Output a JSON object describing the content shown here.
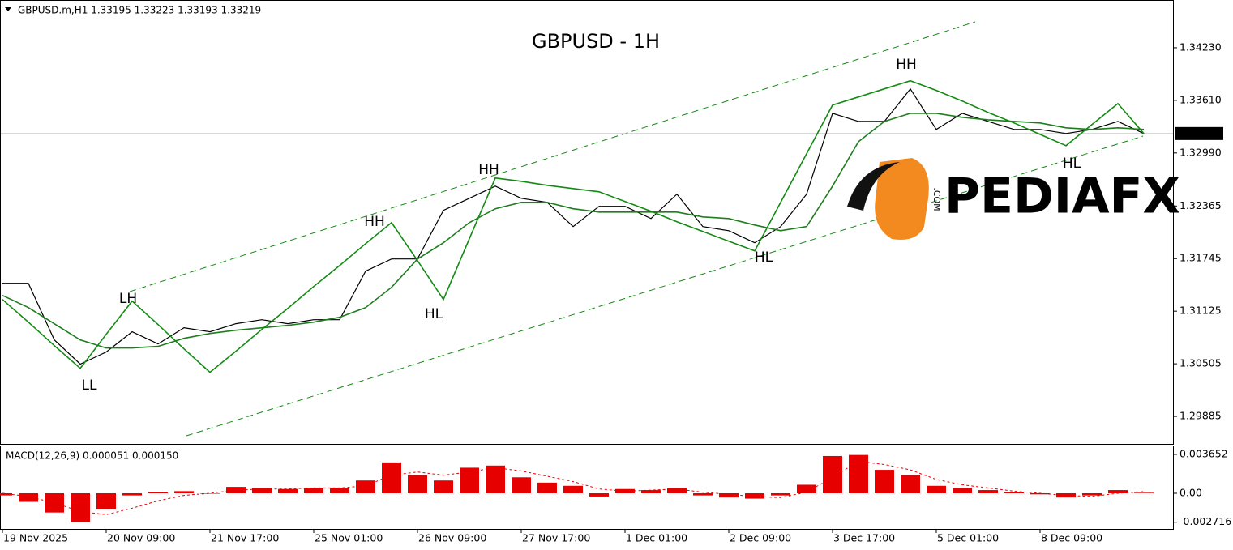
{
  "chart_data": [
    {
      "type": "line",
      "title": "GBPUSD - 1H",
      "header": "GBPUSD.m,H1  1.33195 1.33223 1.33193 1.33219",
      "watermark": "PEDIAFX",
      "watermark_sub": ".COM",
      "categories": [
        "19 Nov 2025",
        null,
        null,
        null,
        "20 Nov 09:00",
        null,
        null,
        null,
        "21 Nov 17:00",
        null,
        null,
        null,
        "25 Nov 01:00",
        null,
        null,
        null,
        "26 Nov 09:00",
        null,
        null,
        null,
        "27 Nov 17:00",
        null,
        null,
        null,
        "1 Dec 01:00",
        null,
        null,
        null,
        "2 Dec 09:00",
        null,
        null,
        null,
        "3 Dec 17:00",
        null,
        null,
        null,
        "5 Dec 01:00",
        null,
        null,
        null,
        "8 Dec 09:00",
        null,
        null,
        null,
        null
      ],
      "series": [
        {
          "color": "#000000",
          "values": [
            1.31454,
            1.31454,
            1.30787,
            1.30501,
            1.30644,
            1.30882,
            1.30739,
            1.3093,
            1.30882,
            1.30978,
            1.31025,
            1.30978,
            1.31025,
            1.31025,
            1.31597,
            1.31741,
            1.31741,
            1.32313,
            1.32456,
            1.32599,
            1.32456,
            1.32408,
            1.32122,
            1.32361,
            1.32361,
            1.32217,
            1.32504,
            1.32122,
            1.32074,
            1.31931,
            1.32122,
            1.32504,
            1.33457,
            1.33362,
            1.33362,
            1.33744,
            1.33267,
            1.33457,
            1.33362,
            1.33267,
            1.33267,
            1.33219,
            1.33267,
            1.33362,
            1.33219
          ]
        },
        {
          "color": "#1e7d1e",
          "values": [
            1.31311,
            1.31168,
            1.30977,
            1.30786,
            1.30691,
            1.30691,
            1.3071,
            1.30805,
            1.30862,
            1.309,
            1.30929,
            1.30958,
            1.30996,
            1.31053,
            1.31168,
            1.31406,
            1.3174,
            1.31931,
            1.32169,
            1.32332,
            1.32408,
            1.32408,
            1.32332,
            1.32293,
            1.32293,
            1.32293,
            1.32293,
            1.32236,
            1.32217,
            1.32141,
            1.32074,
            1.32122,
            1.32599,
            1.33123,
            1.33362,
            1.33457,
            1.33457,
            1.3341,
            1.33381,
            1.33362,
            1.33343,
            1.33286,
            1.33267,
            1.33286,
            1.33267
          ]
        },
        {
          "color": "#138a13",
          "values": [
            1.31263,
            1.30996,
            1.30719,
            1.30452,
            1.30853,
            1.31244,
            1.30967,
            1.30681,
            1.30405,
            1.30653,
            1.3091,
            1.31158,
            1.31416,
            1.31664,
            1.31921,
            1.32169,
            1.31721,
            1.31263,
            1.31979,
            1.32694,
            1.32656,
            1.32608,
            1.3257,
            1.32532,
            1.32417,
            1.32303,
            1.32179,
            1.32064,
            1.3195,
            1.31835,
            1.32408,
            1.32982,
            1.33554,
            1.3365,
            1.33745,
            1.33841,
            1.33727,
            1.33602,
            1.33467,
            1.33343,
            1.33209,
            1.33076,
            1.33324,
            1.33572,
            1.33219
          ]
        }
      ],
      "current_price": 1.33219,
      "ylim": [
        1.29561,
        1.34764
      ],
      "yticks": [
        {
          "value": 1.3423,
          "label": "1.34230"
        },
        {
          "value": 1.3361,
          "label": "1.33610"
        },
        {
          "value": 1.3299,
          "label": "1.32990"
        },
        1.32365,
        1.31745,
        1.31125,
        1.30505,
        1.29885
      ],
      "annotations": [
        {
          "text": "LH",
          "color": "#ff0000"
        },
        {
          "text": "LL",
          "color": "#ff0000"
        },
        {
          "text": "HH",
          "color": "#138a13"
        },
        {
          "text": "HL",
          "color": "#138a13"
        },
        {
          "text": "HH",
          "color": "#138a13"
        },
        {
          "text": "HL",
          "color": "#138a13"
        },
        {
          "text": "HH",
          "color": "#138a13"
        },
        {
          "text": "HL",
          "color": "#138a13"
        }
      ],
      "grid": false
    },
    {
      "type": "bar",
      "header": "MACD(12,26,9) 0.000051 0.000150",
      "series": [
        {
          "color": "#e60000",
          "values": [
            -0.0002,
            -0.0008,
            -0.0018,
            -0.0027,
            -0.0015,
            -0.0002,
            0.0001,
            0.0002,
            0.0,
            0.0006,
            0.0005,
            0.0004,
            0.0005,
            0.0005,
            0.0012,
            0.0029,
            0.0017,
            0.0012,
            0.0024,
            0.0026,
            0.0015,
            0.001,
            0.0007,
            -0.0003,
            0.0004,
            0.0003,
            0.0005,
            -0.0002,
            -0.0004,
            -0.0005,
            -0.0002,
            0.0008,
            0.0035,
            0.0036,
            0.0022,
            0.0017,
            0.0007,
            0.0005,
            0.0003,
            0.0001,
            -0.0001,
            -0.0004,
            -0.0002,
            0.0003,
            5.1e-05
          ]
        },
        {
          "color": "#e60000",
          "kind": "line",
          "values": [
            0.0,
            -0.0003,
            -0.0009,
            -0.0017,
            -0.002,
            -0.0014,
            -0.0007,
            -0.0002,
            0.0,
            0.0003,
            0.0004,
            0.0004,
            0.0005,
            0.0005,
            0.0007,
            0.0017,
            0.002,
            0.0017,
            0.002,
            0.0024,
            0.0021,
            0.0016,
            0.0011,
            0.0004,
            0.0002,
            0.0003,
            0.0004,
            0.0001,
            -0.0001,
            -0.0003,
            -0.0004,
            0.0001,
            0.0015,
            0.003,
            0.0027,
            0.0022,
            0.0013,
            0.0008,
            0.0005,
            0.0002,
            0.0,
            -0.0002,
            -0.0003,
            0.0,
            0.00015
          ]
        }
      ],
      "ylim": [
        -0.00327,
        0.00441
      ],
      "yticks": [
        0.003652,
        {
          "value": 0,
          "label": "0.00"
        },
        -0.002716
      ],
      "grid": false
    }
  ]
}
